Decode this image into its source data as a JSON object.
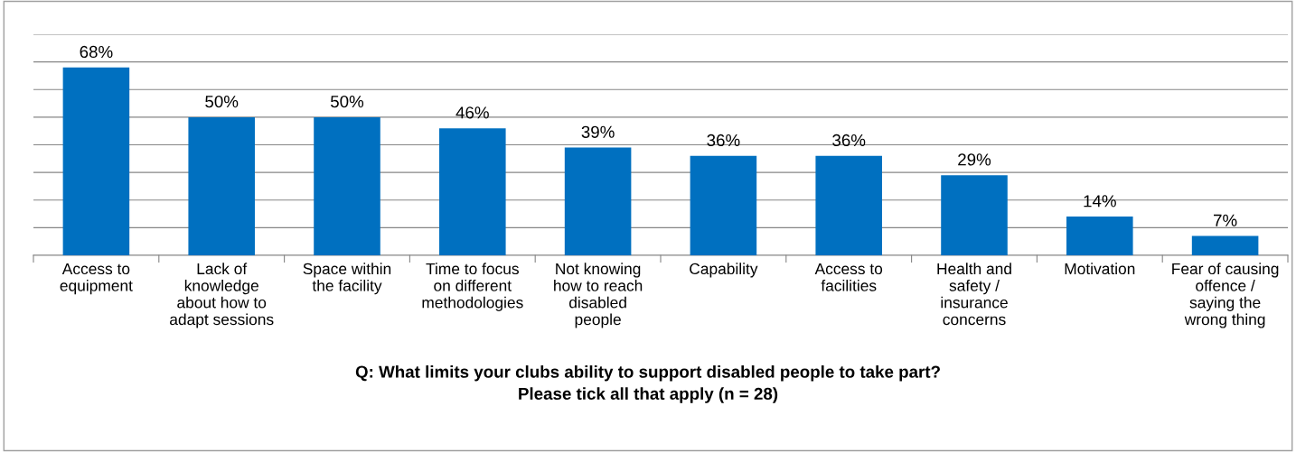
{
  "chart_data": {
    "type": "bar",
    "title": "Q: What limits your clubs ability to support disabled people to take part?\nPlease tick all that apply (n = 28)",
    "categories": [
      "Access to\nequipment",
      "Lack of\nknowledge\nabout how to\nadapt sessions",
      "Space within\nthe facility",
      "Time to focus\non different\nmethodologies",
      "Not knowing\nhow to reach\ndisabled\npeople",
      "Capability",
      "Access to\nfacilities",
      "Health and\nsafety /\ninsurance\nconcerns",
      "Motivation",
      "Fear of causing\noffence /\nsaying the\nwrong thing"
    ],
    "values": [
      68,
      50,
      50,
      46,
      39,
      36,
      36,
      29,
      14,
      7
    ],
    "value_labels": [
      "68%",
      "50%",
      "50%",
      "46%",
      "39%",
      "36%",
      "36%",
      "29%",
      "14%",
      "7%"
    ],
    "color": "#0070c0",
    "ylim": [
      0,
      80
    ],
    "yticks": [
      {
        "value": 0,
        "label": null
      },
      {
        "value": 10,
        "label": null
      },
      {
        "value": 20,
        "label": null
      },
      {
        "value": 30,
        "label": null
      },
      {
        "value": 40,
        "label": null
      },
      {
        "value": 50,
        "label": null
      },
      {
        "value": 60,
        "label": null
      },
      {
        "value": 70,
        "label": null
      },
      {
        "value": 80,
        "label": null
      }
    ],
    "tick_labels": "x",
    "grid": "y"
  }
}
